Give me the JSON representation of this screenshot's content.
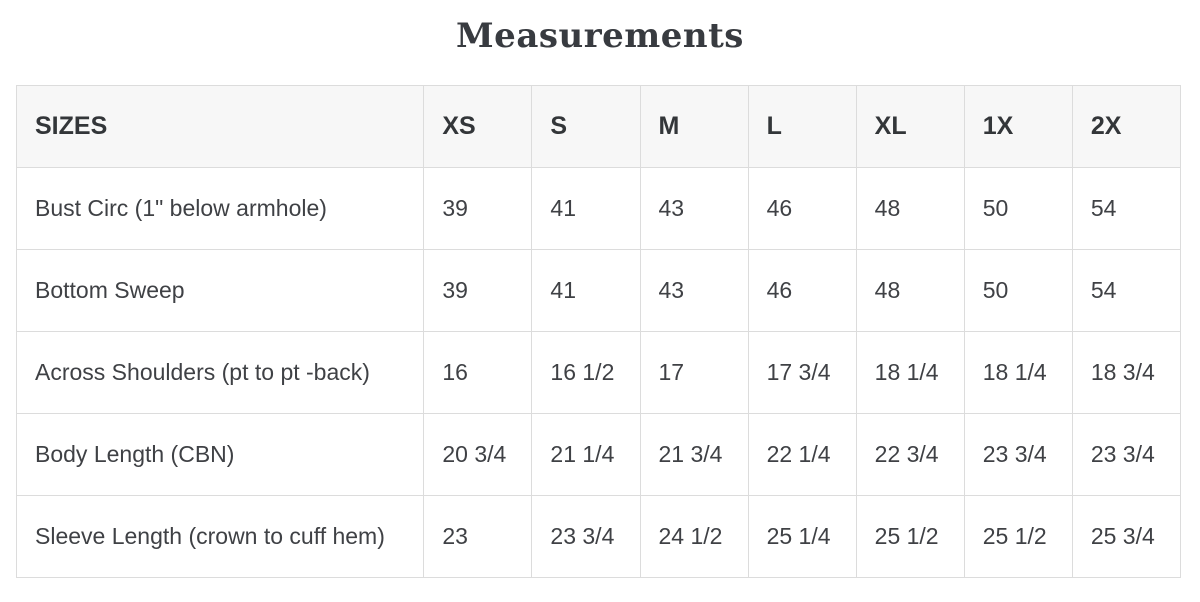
{
  "title": "Measurements",
  "colors": {
    "title_text": "#383b40",
    "body_text": "#3f4145",
    "header_background": "#f7f7f7",
    "grid_border": "#dcdcdc",
    "page_background": "#ffffff"
  },
  "table": {
    "headers": [
      "SIZES",
      "XS",
      "S",
      "M",
      "L",
      "XL",
      "1X",
      "2X"
    ],
    "rows": [
      {
        "label": "Bust Circ (1\" below armhole)",
        "values": [
          "39",
          "41",
          "43",
          "46",
          "48",
          "50",
          "54"
        ]
      },
      {
        "label": "Bottom Sweep",
        "values": [
          "39",
          "41",
          "43",
          "46",
          "48",
          "50",
          "54"
        ]
      },
      {
        "label": "Across Shoulders (pt to pt -back)",
        "values": [
          "16",
          "16 1/2",
          "17",
          "17 3/4",
          "18 1/4",
          "18 1/4",
          "18 3/4"
        ]
      },
      {
        "label": "Body Length (CBN)",
        "values": [
          "20 3/4",
          "21 1/4",
          "21 3/4",
          "22 1/4",
          "22 3/4",
          "23 3/4",
          "23 3/4"
        ]
      },
      {
        "label": "Sleeve Length (crown to cuff hem)",
        "values": [
          "23",
          "23 3/4",
          "24 1/2",
          "25 1/4",
          "25 1/2",
          "25 1/2",
          "25 3/4"
        ]
      }
    ]
  }
}
